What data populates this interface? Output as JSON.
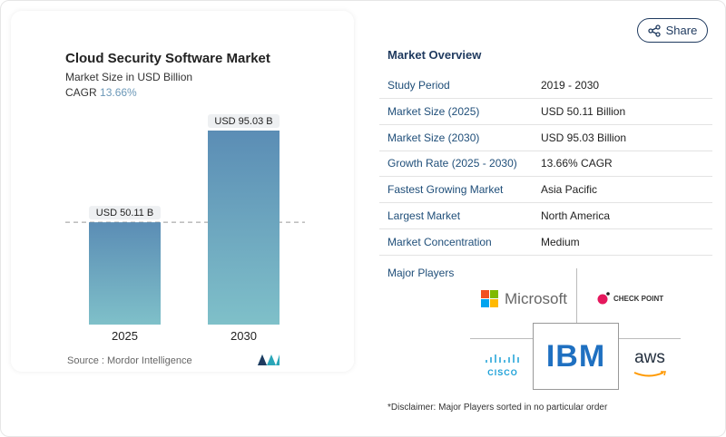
{
  "share_label": "Share",
  "chart_data": {
    "type": "bar",
    "title": "Cloud Security Software Market",
    "subtitle": "Market Size in USD Billion",
    "cagr_label": "CAGR",
    "cagr_value": "13.66%",
    "categories": [
      "2025",
      "2030"
    ],
    "values": [
      50.11,
      95.03
    ],
    "data_labels": [
      "USD 50.11 B",
      "USD 95.03 B"
    ],
    "ylim": [
      0,
      95.03
    ],
    "grid": false,
    "bar_color_top": "#5b8db5",
    "bar_color_bottom": "#7fc0c9",
    "source": "Source :  Mordor Intelligence"
  },
  "overview": {
    "title": "Market Overview",
    "rows": [
      {
        "label": "Study Period",
        "value": "2019 - 2030"
      },
      {
        "label": "Market Size (2025)",
        "value": "USD 50.11 Billion"
      },
      {
        "label": "Market Size (2030)",
        "value": "USD 95.03 Billion"
      },
      {
        "label": "Growth Rate (2025 - 2030)",
        "value": "13.66% CAGR"
      },
      {
        "label": "Fastest Growing Market",
        "value": "Asia Pacific"
      },
      {
        "label": "Largest Market",
        "value": "North America"
      },
      {
        "label": "Market Concentration",
        "value": "Medium"
      }
    ],
    "major_players_label": "Major Players",
    "players": [
      "Microsoft",
      "CHECK POINT",
      "CISCO",
      "IBM",
      "aws"
    ],
    "disclaimer": "*Disclaimer: Major Players sorted in no particular order"
  }
}
